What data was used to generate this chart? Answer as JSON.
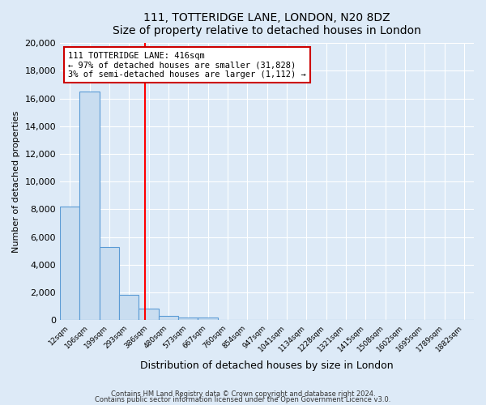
{
  "title": "111, TOTTERIDGE LANE, LONDON, N20 8DZ",
  "subtitle": "Size of property relative to detached houses in London",
  "xlabel": "Distribution of detached houses by size in London",
  "ylabel": "Number of detached properties",
  "bin_labels": [
    "12sqm",
    "106sqm",
    "199sqm",
    "293sqm",
    "386sqm",
    "480sqm",
    "573sqm",
    "667sqm",
    "760sqm",
    "854sqm",
    "947sqm",
    "1041sqm",
    "1134sqm",
    "1228sqm",
    "1321sqm",
    "1415sqm",
    "1508sqm",
    "1602sqm",
    "1695sqm",
    "1789sqm",
    "1882sqm"
  ],
  "bar_values": [
    8200,
    16500,
    5300,
    1800,
    800,
    300,
    200,
    200,
    0,
    0,
    0,
    0,
    0,
    0,
    0,
    0,
    0,
    0,
    0,
    0,
    0
  ],
  "bar_color": "#c9ddf0",
  "bar_edge_color": "#5b9bd5",
  "red_line_x": 4.3,
  "annotation_line1": "111 TOTTERIDGE LANE: 416sqm",
  "annotation_line2": "← 97% of detached houses are smaller (31,828)",
  "annotation_line3": "3% of semi-detached houses are larger (1,112) →",
  "annotation_box_color": "#ffffff",
  "annotation_box_edge": "#cc0000",
  "ylim": [
    0,
    20000
  ],
  "yticks": [
    0,
    2000,
    4000,
    6000,
    8000,
    10000,
    12000,
    14000,
    16000,
    18000,
    20000
  ],
  "footer1": "Contains HM Land Registry data © Crown copyright and database right 2024.",
  "footer2": "Contains public sector information licensed under the Open Government Licence v3.0.",
  "bg_color": "#ddeaf7",
  "plot_bg_color": "#ddeaf7"
}
